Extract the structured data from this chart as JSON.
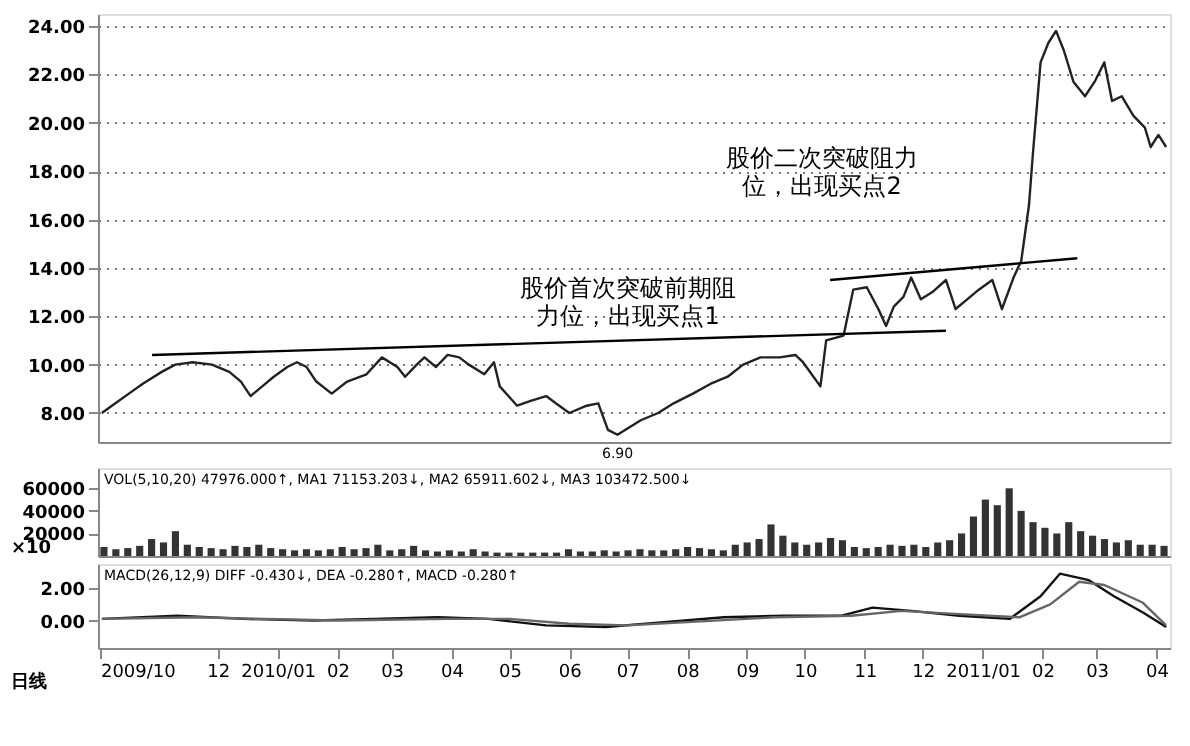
{
  "chart_data": [
    {
      "type": "line",
      "xlim": [
        "2009-09-30",
        "2011-04-08"
      ],
      "ylim": [
        6.8,
        24.5
      ],
      "yticks": [
        {
          "value": 8,
          "label": "8.00"
        },
        {
          "value": 10,
          "label": "10.00"
        },
        {
          "value": 12,
          "label": "12.00"
        },
        {
          "value": 14,
          "label": "14.00"
        },
        {
          "value": 16,
          "label": "16.00"
        },
        {
          "value": 18,
          "label": "18.00"
        },
        {
          "value": 20,
          "label": "20.00"
        },
        {
          "value": 22,
          "label": "22.00"
        },
        {
          "value": 24,
          "label": "24.00"
        }
      ],
      "grid": "y",
      "tick_labels": "y",
      "x": [
        "2009-10-02",
        "2009-10-09",
        "2009-10-16",
        "2009-10-23",
        "2009-11-02",
        "2009-11-09",
        "2009-11-18",
        "2009-11-28",
        "2009-12-07",
        "2009-12-13",
        "2009-12-18",
        "2009-12-24",
        "2009-12-30",
        "2010-01-06",
        "2010-01-11",
        "2010-01-16",
        "2010-01-21",
        "2010-01-29",
        "2010-02-06",
        "2010-02-16",
        "2010-02-24",
        "2010-03-04",
        "2010-03-08",
        "2010-03-14",
        "2010-03-18",
        "2010-03-24",
        "2010-03-30",
        "2010-04-05",
        "2010-04-10",
        "2010-04-18",
        "2010-04-23",
        "2010-04-26",
        "2010-05-05",
        "2010-05-12",
        "2010-05-20",
        "2010-05-25",
        "2010-06-01",
        "2010-06-10",
        "2010-06-16",
        "2010-06-21",
        "2010-06-26",
        "2010-06-28",
        "2010-07-08",
        "2010-07-17",
        "2010-07-25",
        "2010-08-04",
        "2010-08-13",
        "2010-08-22",
        "2010-08-30",
        "2010-09-08",
        "2010-09-18",
        "2010-09-26",
        "2010-09-30",
        "2010-10-09",
        "2010-10-12",
        "2010-10-21",
        "2010-10-26",
        "2010-11-02",
        "2010-11-08",
        "2010-11-12",
        "2010-11-16",
        "2010-11-21",
        "2010-11-25",
        "2010-11-30",
        "2010-12-06",
        "2010-12-13",
        "2010-12-18",
        "2010-12-24",
        "2010-12-30",
        "2011-01-06",
        "2011-01-11",
        "2011-01-17",
        "2011-01-21",
        "2011-01-25",
        "2011-01-27",
        "2011-01-31",
        "2011-02-04",
        "2011-02-08",
        "2011-02-12",
        "2011-02-17",
        "2011-02-23",
        "2011-02-28",
        "2011-03-05",
        "2011-03-09",
        "2011-03-14",
        "2011-03-20",
        "2011-03-26",
        "2011-03-29",
        "2011-04-02",
        "2011-04-06"
      ],
      "series": [
        {
          "color": "#222222",
          "values": [
            8.0,
            8.4,
            8.8,
            9.2,
            9.7,
            10.0,
            10.1,
            10.0,
            9.7,
            9.3,
            8.7,
            9.1,
            9.5,
            9.9,
            10.1,
            9.9,
            9.3,
            8.8,
            9.3,
            9.6,
            10.3,
            9.9,
            9.5,
            10.0,
            10.3,
            9.9,
            10.4,
            10.3,
            10.0,
            9.6,
            10.1,
            9.1,
            8.3,
            8.5,
            8.7,
            8.4,
            8.0,
            8.3,
            8.4,
            7.3,
            7.1,
            7.2,
            7.7,
            8.0,
            8.4,
            8.8,
            9.2,
            9.5,
            10.0,
            10.3,
            10.3,
            10.4,
            10.1,
            9.1,
            11.0,
            11.2,
            13.1,
            13.2,
            12.3,
            11.6,
            12.4,
            12.8,
            13.6,
            12.7,
            13.0,
            13.5,
            12.3,
            12.7,
            13.1,
            13.5,
            12.3,
            13.6,
            14.3,
            16.6,
            18.7,
            22.5,
            23.3,
            23.8,
            23.0,
            21.7,
            21.1,
            21.7,
            22.5,
            20.9,
            21.1,
            20.3,
            19.8,
            19.0,
            19.5,
            19.0
          ]
        },
        {
          "type": "line",
          "color": "#000000",
          "x": [
            "2009-10-28",
            "2010-12-13"
          ],
          "values": [
            10.4,
            11.4
          ]
        },
        {
          "type": "line",
          "color": "#000000",
          "x": [
            "2010-10-14",
            "2011-02-19"
          ],
          "values": [
            13.5,
            14.4
          ]
        }
      ],
      "annotations": [
        "股价首次突破前期阻力位，出现买点1",
        "股价二次突破阻力位，出现买点2",
        {
          "text": "6.90",
          "x": "2010-06-26",
          "y": 6.9
        }
      ]
    },
    {
      "type": "bar",
      "title": "VOL(5,10,20) 47976.000↑, MA1 71153.203↓, MA2 65911.602↓, MA3 103472.500↓",
      "ylabel": "×10",
      "ylim": [
        0,
        78000
      ],
      "yticks": [
        20000,
        40000,
        60000
      ],
      "tick_labels": "y",
      "color": "#333333",
      "categories": [
        null,
        null,
        null,
        null,
        null,
        null,
        null,
        null,
        null,
        null,
        null,
        null,
        null,
        null,
        null,
        null,
        null,
        null,
        null,
        null,
        null,
        null,
        null,
        null,
        null,
        null,
        null,
        null,
        null,
        null,
        null,
        null,
        null,
        null,
        null,
        null,
        null,
        null,
        null,
        null,
        null,
        null,
        null,
        null,
        null,
        null,
        null,
        null,
        null,
        null,
        null,
        null,
        null,
        null,
        null,
        null,
        null,
        null,
        null,
        null,
        null,
        null,
        null,
        null,
        null,
        null,
        null,
        null,
        null,
        null,
        null,
        null,
        null,
        null,
        null,
        null,
        null,
        null,
        null,
        null,
        null,
        null,
        null,
        null,
        null,
        null,
        null,
        null,
        null,
        null
      ],
      "values": [
        8000,
        6000,
        7000,
        9000,
        15000,
        12000,
        22000,
        10000,
        8000,
        7000,
        6000,
        9000,
        8000,
        10000,
        7000,
        6000,
        5000,
        6000,
        5000,
        6000,
        8000,
        6000,
        7000,
        10000,
        5000,
        6000,
        9000,
        5000,
        4000,
        5000,
        4000,
        6000,
        4000,
        3000,
        3000,
        3000,
        3000,
        3000,
        3000,
        6000,
        4000,
        4000,
        5000,
        4000,
        5000,
        6000,
        5000,
        5000,
        6000,
        8000,
        7000,
        6000,
        5000,
        10000,
        12000,
        15000,
        28000,
        18000,
        12000,
        10000,
        12000,
        16000,
        14000,
        8000,
        7000,
        8000,
        10000,
        9000,
        10000,
        8000,
        12000,
        14000,
        20000,
        35000,
        50000,
        45000,
        60000,
        40000,
        30000,
        25000,
        20000,
        30000,
        22000,
        18000,
        15000,
        12000,
        14000,
        10000,
        10000,
        9000
      ]
    },
    {
      "type": "line",
      "title": "MACD(26,12,9) DIFF -0.430↓, DEA -0.280↑, MACD -0.280↑",
      "xlabel": "日线",
      "xlim": [
        "2009-09-30",
        "2011-04-08"
      ],
      "ylim": [
        -1.7,
        3.5
      ],
      "yticks": [
        {
          "value": 0,
          "label": "0.00"
        },
        {
          "value": 2,
          "label": "2.00"
        }
      ],
      "xticks": [
        {
          "value": "2009-10-01",
          "label": "2009/10"
        },
        {
          "value": "2009-12-01",
          "label": "12"
        },
        {
          "value": "2010-01-01",
          "label": "2010/01"
        },
        {
          "value": "2010-02-01",
          "label": "02"
        },
        {
          "value": "2010-03-01",
          "label": "03"
        },
        {
          "value": "2010-04-01",
          "label": "04"
        },
        {
          "value": "2010-05-01",
          "label": "05"
        },
        {
          "value": "2010-06-01",
          "label": "06"
        },
        {
          "value": "2010-07-01",
          "label": "07"
        },
        {
          "value": "2010-08-01",
          "label": "08"
        },
        {
          "value": "2010-09-01",
          "label": "09"
        },
        {
          "value": "2010-10-01",
          "label": "10"
        },
        {
          "value": "2010-11-01",
          "label": "11"
        },
        {
          "value": "2010-12-01",
          "label": "12"
        },
        {
          "value": "2011-01-01",
          "label": "2011/01"
        },
        {
          "value": "2011-02-01",
          "label": "02"
        },
        {
          "value": "2011-03-01",
          "label": "03"
        },
        {
          "value": "2011-04-01",
          "label": "04"
        }
      ],
      "series": [
        {
          "color": "#111111",
          "x": [
            "2009-10-02",
            "2009-11-10",
            "2009-12-15",
            "2010-01-20",
            "2010-02-20",
            "2010-03-25",
            "2010-04-20",
            "2010-05-20",
            "2010-06-20",
            "2010-07-20",
            "2010-08-20",
            "2010-09-20",
            "2010-10-20",
            "2010-11-05",
            "2010-11-25",
            "2010-12-20",
            "2011-01-15",
            "2011-01-31",
            "2011-02-10",
            "2011-02-25",
            "2011-03-10",
            "2011-03-25",
            "2011-04-06"
          ],
          "values": [
            0.1,
            0.3,
            0.1,
            0.0,
            0.1,
            0.2,
            0.1,
            -0.3,
            -0.4,
            -0.1,
            0.2,
            0.3,
            0.3,
            0.8,
            0.6,
            0.3,
            0.1,
            1.5,
            2.9,
            2.5,
            1.5,
            0.5,
            -0.4
          ]
        },
        {
          "color": "#666666",
          "x": [
            "2009-10-02",
            "2009-11-20",
            "2009-12-25",
            "2010-02-01",
            "2010-03-30",
            "2010-05-01",
            "2010-06-01",
            "2010-07-01",
            "2010-08-01",
            "2010-09-15",
            "2010-10-25",
            "2010-11-20",
            "2010-12-20",
            "2011-01-20",
            "2011-02-05",
            "2011-02-20",
            "2011-03-05",
            "2011-03-25",
            "2011-04-06"
          ],
          "values": [
            0.1,
            0.2,
            0.1,
            0.0,
            0.1,
            0.1,
            -0.2,
            -0.3,
            -0.1,
            0.2,
            0.3,
            0.6,
            0.4,
            0.2,
            1.0,
            2.4,
            2.2,
            1.1,
            -0.3
          ]
        }
      ]
    }
  ]
}
